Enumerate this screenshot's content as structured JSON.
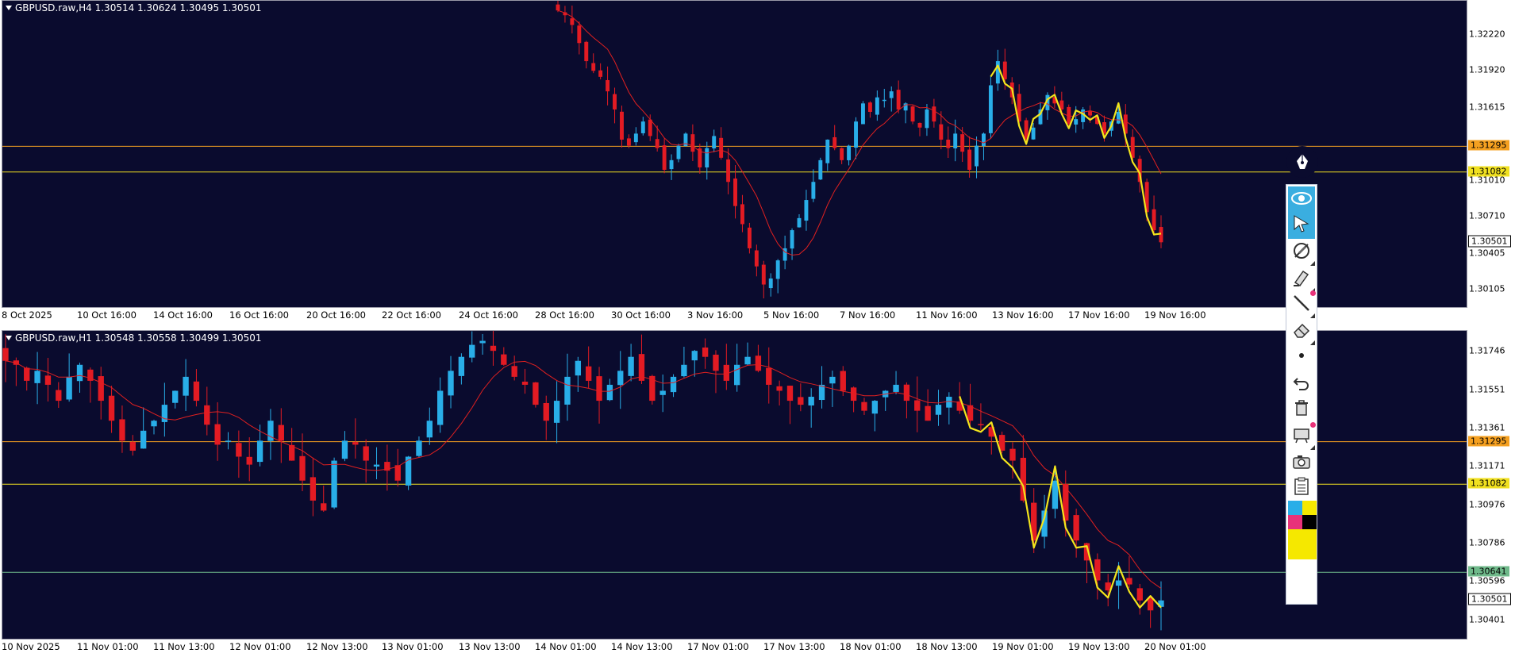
{
  "chart_data": [
    {
      "type": "candlestick",
      "title": "GBPUSD.raw,H4  1.30514 1.30624 1.30495 1.30501",
      "ylim": [
        1.2995,
        1.325
      ],
      "y_ticks": [
        "1.32220",
        "1.31920",
        "1.31615",
        "1.31010",
        "1.30710",
        "1.30405",
        "1.30105"
      ],
      "x_ticks": [
        "8 Oct 2025",
        "10 Oct 16:00",
        "14 Oct 16:00",
        "16 Oct 16:00",
        "20 Oct 16:00",
        "22 Oct 16:00",
        "24 Oct 16:00",
        "28 Oct 16:00",
        "30 Oct 16:00",
        "3 Nov 16:00",
        "5 Nov 16:00",
        "7 Nov 16:00",
        "11 Nov 16:00",
        "13 Nov 16:00",
        "17 Nov 16:00",
        "19 Nov 16:00"
      ],
      "closes": [
        1.3242,
        1.3238,
        1.323,
        1.3215,
        1.32,
        1.3192,
        1.3187,
        1.3175,
        1.316,
        1.3135,
        1.313,
        1.314,
        1.315,
        1.3138,
        1.3128,
        1.311,
        1.3118,
        1.313,
        1.314,
        1.3125,
        1.3112,
        1.3128,
        1.3138,
        1.312,
        1.31,
        1.308,
        1.3065,
        1.3045,
        1.303,
        1.3015,
        1.302,
        1.3035,
        1.3045,
        1.306,
        1.307,
        1.3085,
        1.31,
        1.3118,
        1.3135,
        1.3128,
        1.3118,
        1.313,
        1.315,
        1.3165,
        1.3158,
        1.317,
        1.3168,
        1.3175,
        1.316,
        1.3165,
        1.315,
        1.3145,
        1.316,
        1.315,
        1.3135,
        1.3128,
        1.314,
        1.3125,
        1.311,
        1.313,
        1.314,
        1.318,
        1.32,
        1.3185,
        1.317,
        1.315,
        1.3135,
        1.3145,
        1.316,
        1.3172,
        1.3165,
        1.316,
        1.3148,
        1.3152,
        1.316,
        1.3155,
        1.3148,
        1.314,
        1.315,
        1.3158,
        1.314,
        1.312,
        1.31,
        1.3075,
        1.306,
        1.305
      ],
      "ma_label": "",
      "ma_color": "#e02020",
      "price_lines": [
        {
          "value": 1.31295,
          "color": "#f5a020",
          "label": "1.31295"
        },
        {
          "value": 1.31082,
          "color": "#f0e020",
          "label": "1.31082"
        }
      ],
      "price_tags": [
        {
          "value": 1.30501,
          "label": "1.30501"
        }
      ]
    },
    {
      "type": "candlestick",
      "title": "GBPUSD.raw,H1  1.30548 1.30558 1.30499 1.30501",
      "ylim": [
        1.303,
        1.3185
      ],
      "y_ticks": [
        "1.31746",
        "1.31551",
        "1.31361",
        "1.31171",
        "1.30976",
        "1.30786",
        "1.30596",
        "1.30401"
      ],
      "x_ticks": [
        "10 Nov 2025",
        "11 Nov 01:00",
        "11 Nov 13:00",
        "12 Nov 01:00",
        "12 Nov 13:00",
        "13 Nov 01:00",
        "13 Nov 13:00",
        "14 Nov 01:00",
        "14 Nov 13:00",
        "17 Nov 01:00",
        "17 Nov 13:00",
        "18 Nov 01:00",
        "18 Nov 13:00",
        "19 Nov 01:00",
        "19 Nov 13:00",
        "20 Nov 01:00"
      ],
      "closes": [
        1.317,
        1.3168,
        1.316,
        1.3165,
        1.3158,
        1.315,
        1.3162,
        1.3168,
        1.316,
        1.315,
        1.314,
        1.313,
        1.3125,
        1.3135,
        1.314,
        1.3148,
        1.3155,
        1.3162,
        1.315,
        1.3138,
        1.3128,
        1.313,
        1.3122,
        1.3118,
        1.313,
        1.314,
        1.313,
        1.312,
        1.311,
        1.31,
        1.3095,
        1.312,
        1.313,
        1.3128,
        1.312,
        1.3118,
        1.3115,
        1.311,
        1.3122,
        1.313,
        1.314,
        1.3155,
        1.3165,
        1.3172,
        1.3178,
        1.318,
        1.3175,
        1.3168,
        1.3162,
        1.3158,
        1.3148,
        1.314,
        1.315,
        1.3162,
        1.317,
        1.316,
        1.315,
        1.3158,
        1.3165,
        1.3172,
        1.316,
        1.315,
        1.3155,
        1.3162,
        1.3168,
        1.3175,
        1.3172,
        1.3165,
        1.316,
        1.3168,
        1.3172,
        1.3165,
        1.3158,
        1.3155,
        1.315,
        1.3148,
        1.3152,
        1.3158,
        1.3162,
        1.3155,
        1.315,
        1.3145,
        1.315,
        1.3155,
        1.3158,
        1.315,
        1.3145,
        1.314,
        1.3148,
        1.3152,
        1.3145,
        1.314,
        1.3138,
        1.3132,
        1.3125,
        1.312,
        1.31,
        1.308,
        1.3095,
        1.311,
        1.309,
        1.308,
        1.307,
        1.306,
        1.3055,
        1.306,
        1.3058,
        1.305,
        1.3045,
        1.305
      ],
      "ma_label": "",
      "ma_color": "#e02020",
      "price_lines": [
        {
          "value": 1.31295,
          "color": "#f5a020",
          "label": "1.31295"
        },
        {
          "value": 1.31082,
          "color": "#f0e020",
          "label": "1.31082"
        },
        {
          "value": 1.30641,
          "color": "#6fb98a",
          "label": "1.30641"
        }
      ],
      "price_tags": [
        {
          "value": 1.30501,
          "label": "1.30501"
        }
      ]
    }
  ],
  "colors": {
    "background": "#0a0b2e",
    "bull": "#29aee8",
    "bear": "#e31b23",
    "drawing": "#f3e51c"
  },
  "toolbar": {
    "items": [
      {
        "name": "eye-icon",
        "active": true
      },
      {
        "name": "cursor-icon",
        "active": true
      },
      {
        "name": "disable-drawing-icon",
        "active": false
      },
      {
        "name": "highlighter-icon",
        "active": false
      },
      {
        "name": "line-icon",
        "active": false
      },
      {
        "name": "eraser-icon",
        "active": false
      },
      {
        "name": "dot-icon",
        "active": false
      },
      {
        "name": "undo-icon",
        "active": false
      },
      {
        "name": "trash-icon",
        "active": false
      },
      {
        "name": "projector-icon",
        "active": false
      },
      {
        "name": "camera-icon",
        "active": false
      },
      {
        "name": "clipboard-icon",
        "active": false
      }
    ],
    "palette": [
      "#29aee8",
      "#f5e800",
      "#e8327a",
      "#000000",
      "#f5e800"
    ]
  }
}
